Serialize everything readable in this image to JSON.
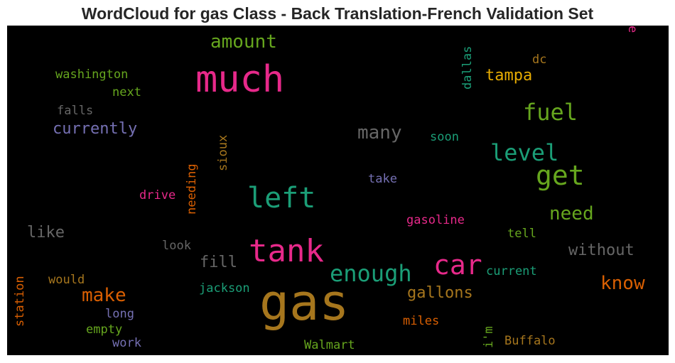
{
  "title": "WordCloud for gas Class - Back Translation-French Validation Set",
  "colors": {
    "pink": "#e7298a",
    "gold": "#a6761d",
    "green": "#66a61e",
    "teal": "#1b9e77",
    "purple": "#7570b3",
    "orange": "#d95f02",
    "gray": "#666666",
    "yellow": "#e6ab02"
  },
  "words": [
    {
      "text": "much",
      "color": "pink"
    },
    {
      "text": "gas",
      "color": "gold"
    },
    {
      "text": "tank",
      "color": "pink"
    },
    {
      "text": "left",
      "color": "teal"
    },
    {
      "text": "car",
      "color": "pink"
    },
    {
      "text": "get",
      "color": "green"
    },
    {
      "text": "fuel",
      "color": "green"
    },
    {
      "text": "level",
      "color": "teal"
    },
    {
      "text": "enough",
      "color": "teal"
    },
    {
      "text": "amount",
      "color": "green"
    },
    {
      "text": "many",
      "color": "gray"
    },
    {
      "text": "need",
      "color": "green"
    },
    {
      "text": "know",
      "color": "orange"
    },
    {
      "text": "make",
      "color": "orange"
    },
    {
      "text": "without",
      "color": "gray"
    },
    {
      "text": "currently",
      "color": "purple"
    },
    {
      "text": "tampa",
      "color": "yellow"
    },
    {
      "text": "gallons",
      "color": "gold"
    },
    {
      "text": "fill",
      "color": "gray"
    },
    {
      "text": "like",
      "color": "gray"
    },
    {
      "text": "washington",
      "color": "green"
    },
    {
      "text": "next",
      "color": "green"
    },
    {
      "text": "falls",
      "color": "gray"
    },
    {
      "text": "dallas",
      "color": "teal"
    },
    {
      "text": "dc",
      "color": "gold"
    },
    {
      "text": "soon",
      "color": "teal"
    },
    {
      "text": "sioux",
      "color": "gold"
    },
    {
      "text": "needing",
      "color": "orange"
    },
    {
      "text": "take",
      "color": "purple"
    },
    {
      "text": "drive",
      "color": "pink"
    },
    {
      "text": "gasoline",
      "color": "pink"
    },
    {
      "text": "tell",
      "color": "green"
    },
    {
      "text": "look",
      "color": "gray"
    },
    {
      "text": "current",
      "color": "teal"
    },
    {
      "text": "would",
      "color": "gold"
    },
    {
      "text": "jackson",
      "color": "teal"
    },
    {
      "text": "station",
      "color": "orange"
    },
    {
      "text": "long",
      "color": "purple"
    },
    {
      "text": "empty",
      "color": "green"
    },
    {
      "text": "work",
      "color": "purple"
    },
    {
      "text": "miles",
      "color": "orange"
    },
    {
      "text": "i'm",
      "color": "green"
    },
    {
      "text": "Walmart",
      "color": "green"
    },
    {
      "text": "Buffalo",
      "color": "gold"
    },
    {
      "text": "e",
      "color": "pink"
    }
  ]
}
